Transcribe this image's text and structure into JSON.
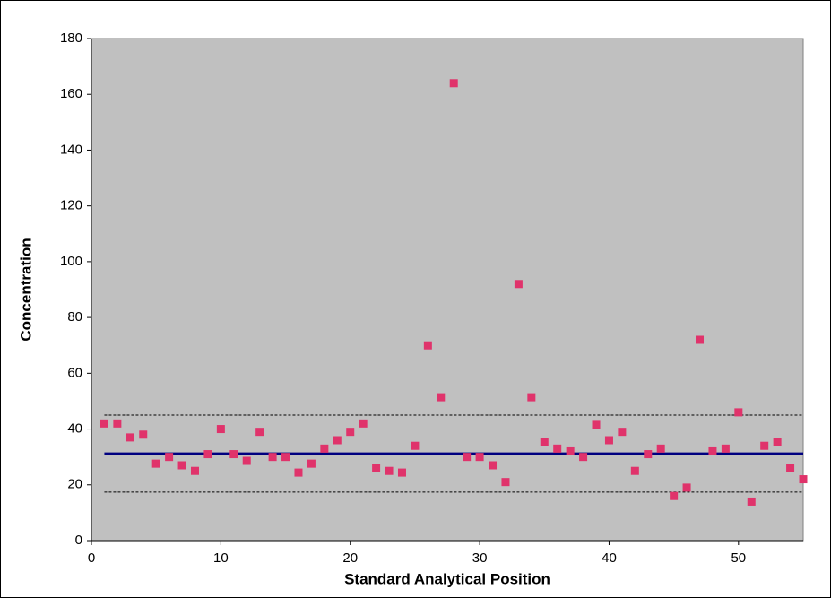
{
  "chart_data": {
    "type": "scatter",
    "x_label": "Standard Analytical Position",
    "y_label": "Concentration",
    "x": [
      1,
      2,
      3,
      4,
      5,
      6,
      7,
      8,
      9,
      10,
      11,
      12,
      13,
      14,
      15,
      16,
      17,
      18,
      19,
      20,
      21,
      22,
      23,
      24,
      25,
      26,
      27,
      28,
      29,
      30,
      31,
      32,
      33,
      34,
      35,
      36,
      37,
      38,
      39,
      40,
      41,
      42,
      43,
      44,
      45,
      46,
      47,
      48,
      49,
      50,
      51,
      52,
      53,
      54,
      55
    ],
    "series": [
      {
        "color": "#e0336b",
        "values": [
          42,
          42,
          37,
          38,
          27.6,
          30,
          27,
          25,
          31,
          40,
          31,
          28.6,
          39,
          30,
          30,
          24.4,
          27.6,
          33,
          36,
          39,
          42,
          26,
          25,
          24.4,
          34,
          70,
          51.4,
          164,
          30,
          30,
          27,
          21,
          92,
          51.4,
          35.4,
          33,
          32,
          30,
          41.5,
          36,
          39,
          25,
          31,
          33,
          16,
          19,
          72,
          32,
          33,
          46,
          14,
          34,
          35.4,
          26,
          22
        ]
      }
    ],
    "reference_lines": [
      {
        "value": 31.2,
        "color": "#000080",
        "style": "solid"
      },
      {
        "value": 45,
        "color": "#000000",
        "style": "dashed"
      },
      {
        "value": 17.4,
        "color": "#000000",
        "style": "dashed"
      }
    ],
    "xlim": [
      0,
      55
    ],
    "xticks": [
      0,
      10,
      20,
      30,
      40,
      50
    ],
    "ylim": [
      0,
      180
    ],
    "yticks": [
      0,
      20,
      40,
      60,
      80,
      100,
      120,
      140,
      160,
      180
    ],
    "plot_background": "#c0c0c0"
  }
}
